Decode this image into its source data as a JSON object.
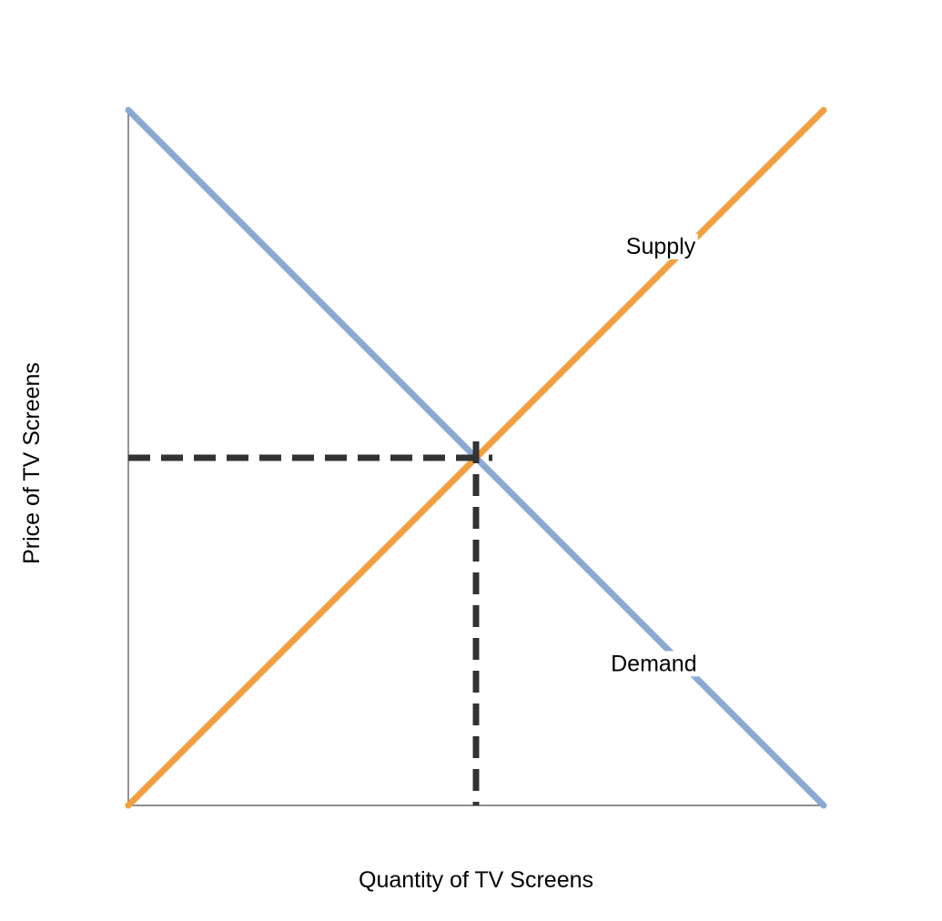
{
  "chart_data": {
    "type": "line",
    "xlabel": "Quantity of TV Screens",
    "ylabel": "Price of TV Screens",
    "xlim": [
      0,
      10
    ],
    "ylim": [
      0,
      10
    ],
    "grid": false,
    "series": [
      {
        "name": "Supply",
        "color": "#f0a040",
        "x": [
          0,
          10
        ],
        "y": [
          0,
          10
        ]
      },
      {
        "name": "Demand",
        "color": "#8aaad2",
        "x": [
          0,
          10
        ],
        "y": [
          10,
          0
        ]
      }
    ],
    "equilibrium": {
      "x": 5,
      "y": 5
    }
  }
}
